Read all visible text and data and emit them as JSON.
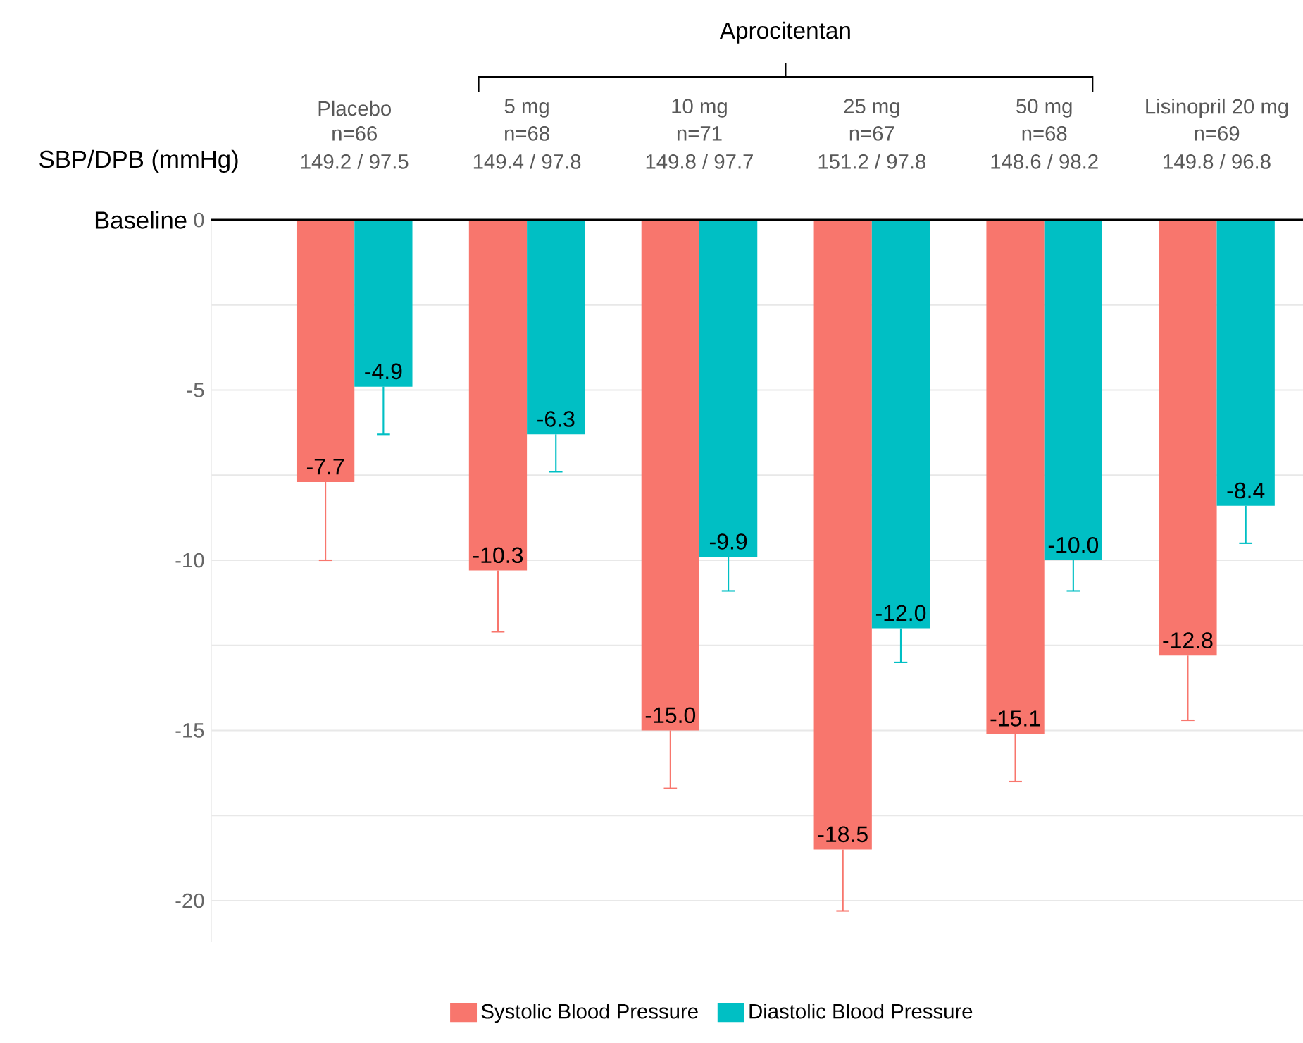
{
  "chart_data": {
    "type": "bar",
    "categories": [
      "Placebo",
      "5 mg",
      "10 mg",
      "25 mg",
      "50 mg",
      "Lisinopril 20 mg"
    ],
    "series": [
      {
        "name": "Systolic Blood Pressure",
        "color": "#f8766d",
        "values": [
          -7.7,
          -10.3,
          -15.0,
          -18.5,
          -15.1,
          -12.8
        ],
        "value_labels": [
          "-7.7",
          "-10.3",
          "-15.0",
          "-18.5",
          "-15.1",
          "-12.8"
        ],
        "errors": [
          [
            -10.0,
            -7.7
          ],
          [
            -12.1,
            -10.3
          ],
          [
            -16.7,
            -15.0
          ],
          [
            -20.3,
            -18.5
          ],
          [
            -16.5,
            -15.1
          ],
          [
            -14.7,
            -12.8
          ]
        ]
      },
      {
        "name": "Diastolic Blood Pressure",
        "color": "#00bfc4",
        "values": [
          -4.9,
          -6.3,
          -9.9,
          -12.0,
          -10.0,
          -8.4
        ],
        "value_labels": [
          "-4.9",
          "-6.3",
          "-9.9",
          "-12.0",
          "-10.0",
          "-8.4"
        ],
        "errors": [
          [
            -6.3,
            -4.9
          ],
          [
            -7.4,
            -6.3
          ],
          [
            -10.9,
            -9.9
          ],
          [
            -13.0,
            -12.0
          ],
          [
            -10.9,
            -10.0
          ],
          [
            -9.5,
            -8.4
          ]
        ]
      }
    ],
    "ylim": [
      -21.2,
      0
    ],
    "yticks": [
      0,
      {
        "value": -2.5,
        "label": null
      },
      -5,
      {
        "value": -7.5,
        "label": null
      },
      -10,
      {
        "value": -12.5,
        "label": null
      },
      -15,
      {
        "value": -17.5,
        "label": null
      },
      -20
    ],
    "ref_lines": [
      {
        "axis": "y",
        "value": 0,
        "color": "#000000"
      }
    ],
    "annotations": [
      "Aprocitentan",
      "SBP/DPB (mmHg)",
      "Baseline",
      "n=66",
      "n=68",
      "n=71",
      "n=67",
      "n=68",
      "n=69",
      "149.2 / 97.5",
      "149.4 / 97.8",
      "149.8 / 97.7",
      "151.2 / 97.8",
      "148.6 / 98.2",
      "149.8 / 96.8"
    ],
    "grid": "y",
    "legend": "bottom"
  }
}
